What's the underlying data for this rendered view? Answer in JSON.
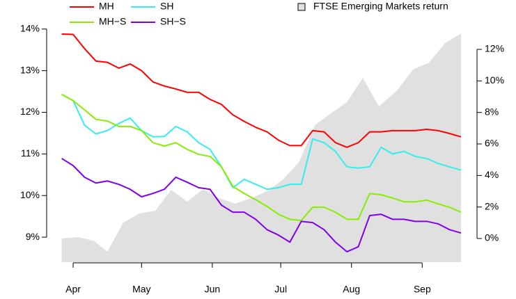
{
  "chart_data": {
    "type": "line",
    "xlim": [
      -5.5,
      170
    ],
    "xticks": [
      {
        "value": 0,
        "label": "Apr"
      },
      {
        "value": 30,
        "label": "May"
      },
      {
        "value": 61,
        "label": "Jun"
      },
      {
        "value": 91,
        "label": "Jul"
      },
      {
        "value": 122,
        "label": "Aug"
      },
      {
        "value": 153,
        "label": "Sep"
      }
    ],
    "ylim": [
      8.4,
      14.28
    ],
    "yticks": [
      {
        "value": 9,
        "label": "9%"
      },
      {
        "value": 10,
        "label": "10%"
      },
      {
        "value": 11,
        "label": "11%"
      },
      {
        "value": 12,
        "label": "12%"
      },
      {
        "value": 13,
        "label": "13%"
      },
      {
        "value": 14,
        "label": "14%"
      }
    ],
    "y2lim": [
      -1.5,
      14.03
    ],
    "y2ticks": [
      {
        "value": 0,
        "label": "0%"
      },
      {
        "value": 2,
        "label": "2%"
      },
      {
        "value": 4,
        "label": "4%"
      },
      {
        "value": 6,
        "label": "6%"
      },
      {
        "value": 8,
        "label": "8%"
      },
      {
        "value": 10,
        "label": "10%"
      },
      {
        "value": 12,
        "label": "12%"
      }
    ],
    "x": [
      -5,
      0,
      5,
      10,
      15,
      20,
      25,
      30,
      35,
      40,
      45,
      50,
      55,
      60,
      65,
      70,
      75,
      80,
      85,
      90,
      95,
      100,
      105,
      110,
      115,
      120,
      125,
      130,
      135,
      140,
      145,
      150,
      155,
      160,
      165,
      170
    ],
    "area": {
      "name": "FTSE Emerging Markets return",
      "color": "#e0e0e0",
      "axis": "y2",
      "x": [
        -5,
        2,
        9,
        15,
        22,
        29,
        36,
        43,
        50,
        57,
        64,
        71,
        78,
        85,
        92,
        99,
        106,
        113,
        120,
        127,
        134,
        142,
        149,
        156,
        163,
        170
      ],
      "values": [
        0.0,
        0.09,
        -0.13,
        -0.84,
        1.01,
        1.59,
        1.76,
        3.09,
        2.34,
        3.13,
        2.56,
        2.21,
        2.56,
        3.0,
        3.75,
        4.85,
        7.19,
        7.94,
        8.65,
        10.19,
        8.38,
        9.4,
        10.72,
        11.16,
        12.4,
        13.0
      ]
    },
    "series": [
      {
        "name": "MH",
        "color": "#ff0000",
        "values": [
          13.88,
          13.87,
          13.53,
          13.23,
          13.2,
          13.06,
          13.16,
          13.0,
          12.73,
          12.63,
          12.56,
          12.48,
          12.48,
          12.31,
          12.19,
          11.94,
          11.78,
          11.64,
          11.53,
          11.33,
          11.2,
          11.2,
          11.56,
          11.53,
          11.27,
          11.16,
          11.27,
          11.53,
          11.53,
          11.56,
          11.56,
          11.56,
          11.59,
          11.56,
          11.49,
          11.41
        ]
      },
      {
        "name": "SH",
        "color": "#33eeee",
        "values": [
          12.43,
          12.28,
          11.69,
          11.48,
          11.56,
          11.73,
          11.86,
          11.56,
          11.41,
          11.42,
          11.66,
          11.53,
          11.27,
          11.11,
          10.69,
          10.19,
          10.39,
          10.27,
          10.15,
          10.19,
          10.27,
          10.27,
          11.36,
          11.27,
          11.06,
          10.69,
          10.66,
          10.69,
          11.16,
          11.0,
          11.06,
          10.94,
          10.89,
          10.77,
          10.69,
          10.61
        ]
      },
      {
        "name": "MH−S",
        "color": "#88ee00",
        "values": [
          12.43,
          12.28,
          12.06,
          11.83,
          11.79,
          11.66,
          11.66,
          11.56,
          11.27,
          11.19,
          11.27,
          11.11,
          10.99,
          10.94,
          10.69,
          10.22,
          10.05,
          9.9,
          9.74,
          9.55,
          9.43,
          9.4,
          9.72,
          9.72,
          9.6,
          9.43,
          9.43,
          10.05,
          10.02,
          9.94,
          9.85,
          9.85,
          9.89,
          9.8,
          9.72,
          9.6
        ]
      },
      {
        "name": "SH−S",
        "color": "#7f00ee",
        "values": [
          10.89,
          10.72,
          10.44,
          10.3,
          10.35,
          10.27,
          10.15,
          9.97,
          10.05,
          10.15,
          10.44,
          10.32,
          10.19,
          10.15,
          9.77,
          9.6,
          9.6,
          9.43,
          9.18,
          9.05,
          8.88,
          9.38,
          9.35,
          9.18,
          8.88,
          8.65,
          8.77,
          9.52,
          9.55,
          9.43,
          9.43,
          9.38,
          9.38,
          9.32,
          9.18,
          9.1
        ]
      }
    ]
  }
}
